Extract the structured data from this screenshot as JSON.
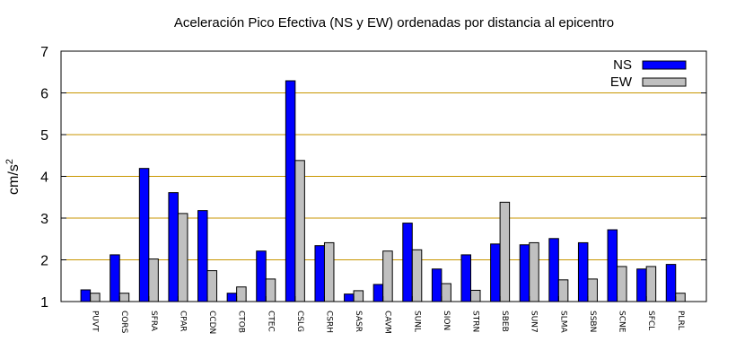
{
  "chart_data": {
    "type": "bar",
    "title": "Aceleración Pico Efectiva (NS y EW) ordenadas por distancia al epicentro",
    "ylabel_base": "cm/s",
    "ylabel_exp": "2",
    "xlabel": "",
    "ylim": [
      1,
      7
    ],
    "yticks": [
      "1",
      "2",
      "3",
      "4",
      "5",
      "6",
      "7"
    ],
    "grid": "horizontal",
    "legend_position": "top-right",
    "categories": [
      "PUVT",
      "CORS",
      "SFRA",
      "CPAR",
      "CCDN",
      "CTOB",
      "CTEC",
      "CSLG",
      "CSRH",
      "SASR",
      "CAVM",
      "SUNL",
      "SION",
      "STRN",
      "SBEB",
      "SUN7",
      "SLMA",
      "SSBN",
      "SCNE",
      "SFCL",
      "PLRL"
    ],
    "series": [
      {
        "name": "NS",
        "color": "#0000ff",
        "values": [
          1.28,
          2.12,
          4.19,
          3.61,
          3.18,
          1.2,
          2.21,
          6.29,
          2.34,
          1.18,
          1.41,
          2.88,
          1.78,
          2.12,
          2.38,
          2.36,
          2.51,
          2.41,
          2.72,
          1.78,
          1.89
        ]
      },
      {
        "name": "EW",
        "color": "#c0c0c0",
        "values": [
          1.2,
          1.2,
          2.02,
          3.11,
          1.74,
          1.35,
          1.54,
          4.38,
          2.41,
          1.26,
          2.21,
          2.24,
          1.43,
          1.27,
          3.38,
          2.41,
          1.52,
          1.54,
          1.84,
          1.84,
          1.2
        ]
      }
    ],
    "gridline_color": "#c89600"
  }
}
